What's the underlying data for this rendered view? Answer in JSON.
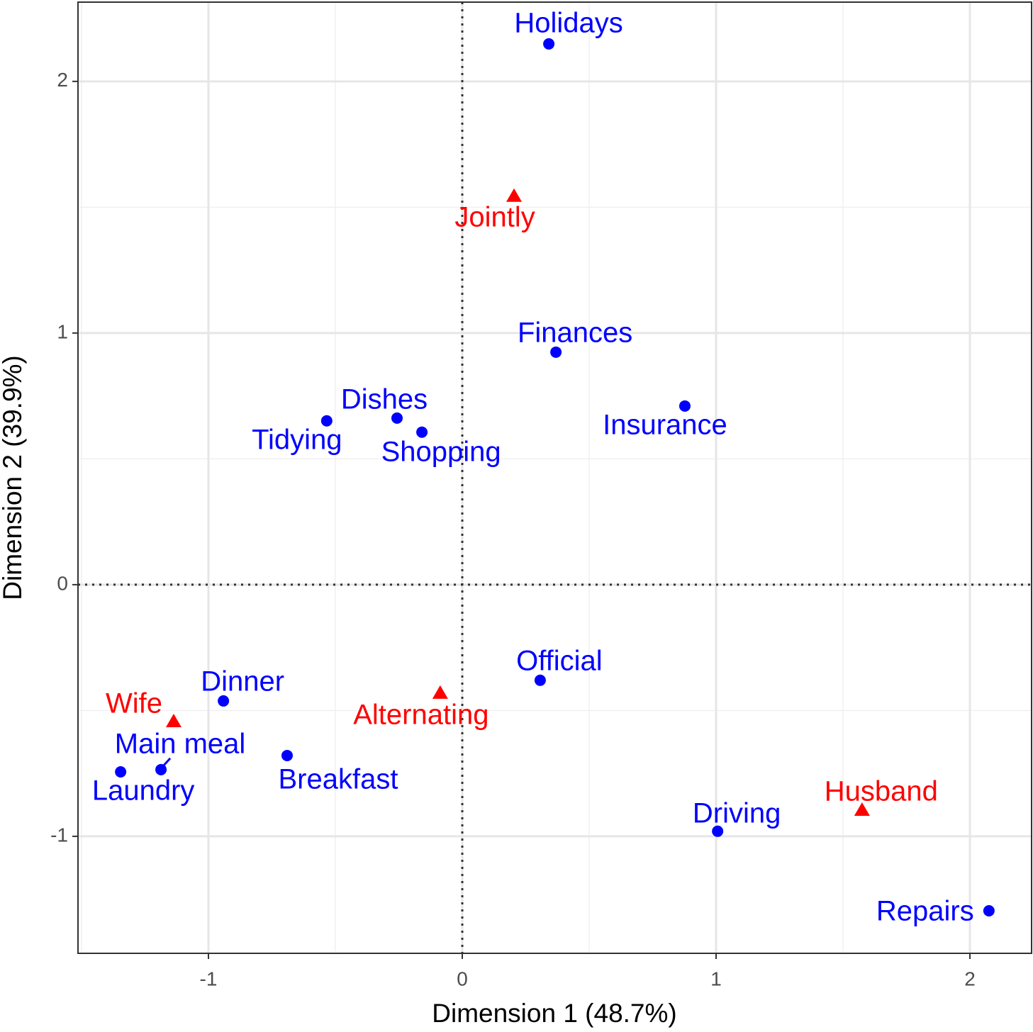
{
  "chart_data": {
    "type": "scatter",
    "xlabel": "Dimension 1 (48.7%)",
    "ylabel": "Dimension 2 (39.9%)",
    "xlim": [
      -1.514,
      2.243
    ],
    "ylim": [
      -1.465,
      2.315
    ],
    "xticks": [
      -1,
      0,
      1,
      2
    ],
    "yticks": [
      -1,
      0,
      1,
      2
    ],
    "grid": true,
    "minor_grid": true,
    "zero_lines": true,
    "series": [
      {
        "color": "#0000ff",
        "marker": "circle",
        "labels": [
          "Holidays",
          "Finances",
          "Insurance",
          "Dishes",
          "Tidying",
          "Shopping",
          "Official",
          "Dinner",
          "Breakfast",
          "Main meal",
          "Laundry",
          "Driving",
          "Repairs"
        ],
        "x": [
          0.341,
          0.369,
          0.877,
          -0.257,
          -0.534,
          -0.159,
          0.307,
          -0.941,
          -0.69,
          -1.187,
          -1.346,
          1.006,
          2.075
        ],
        "values": [
          2.149,
          0.924,
          0.71,
          0.662,
          0.651,
          0.606,
          -0.38,
          -0.462,
          -0.679,
          -0.735,
          -0.744,
          -0.98,
          -1.296
        ]
      },
      {
        "color": "#ff0000",
        "marker": "triangle",
        "labels": [
          "Jointly",
          "Wife",
          "Alternating",
          "Husband"
        ],
        "x": [
          0.204,
          -1.137,
          -0.087,
          1.575
        ],
        "values": [
          1.544,
          -0.544,
          -0.431,
          -0.896
        ]
      }
    ]
  }
}
